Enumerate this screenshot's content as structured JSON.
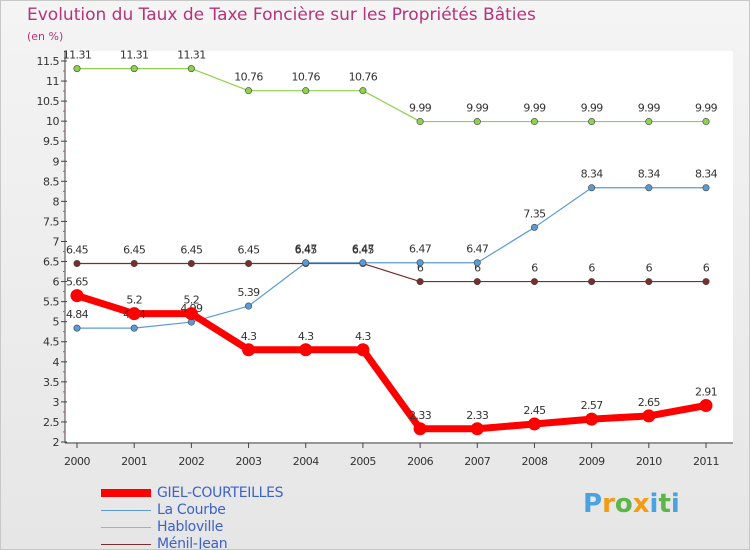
{
  "chart_data": {
    "type": "line",
    "title": "Evolution du Taux de Taxe Foncière sur les Propriétés Bâties",
    "ylabel": "(en %)",
    "xlabel": "",
    "ylim": [
      2,
      11.5
    ],
    "yticks": [
      "2",
      "2.5",
      "3",
      "3.5",
      "4",
      "4.5",
      "5",
      "5.5",
      "6",
      "6.5",
      "7",
      "7.5",
      "8",
      "8.5",
      "9",
      "9.5",
      "10",
      "10.5",
      "11",
      "11.5"
    ],
    "categories": [
      "2000",
      "2001",
      "2002",
      "2003",
      "2004",
      "2005",
      "2006",
      "2007",
      "2008",
      "2009",
      "2010",
      "2011"
    ],
    "series": [
      {
        "name": "Habloville",
        "color": "#8fd14f",
        "values": [
          11.31,
          11.31,
          11.31,
          10.76,
          10.76,
          10.76,
          9.99,
          9.99,
          9.99,
          9.99,
          9.99,
          9.99
        ],
        "labels": [
          "11.31",
          "11.31",
          "11.31",
          "10.76",
          "10.76",
          "10.76",
          "9.99",
          "9.99",
          "9.99",
          "9.99",
          "9.99",
          "9.99"
        ]
      },
      {
        "name": "Ménil-Jean",
        "color": "#7b2c2c",
        "values": [
          6.45,
          6.45,
          6.45,
          6.45,
          6.45,
          6.45,
          6,
          6,
          6,
          6,
          6,
          6
        ],
        "labels": [
          "6.45",
          "6.45",
          "6.45",
          "6.45",
          "6.45",
          "6.45",
          "6",
          "6",
          "6",
          "6",
          "6",
          "6"
        ]
      },
      {
        "name": "La Courbe",
        "color": "#5b9bd5",
        "values": [
          4.84,
          4.84,
          4.99,
          5.39,
          6.47,
          6.47,
          6.47,
          6.47,
          7.35,
          8.34,
          8.34,
          8.34
        ],
        "labels": [
          "4.84",
          "4.84",
          "4.99",
          "5.39",
          "6.47",
          "6.47",
          "6.47",
          "6.47",
          "7.35",
          "8.34",
          "8.34",
          "8.34"
        ]
      },
      {
        "name": "GIEL-COURTEILLES",
        "color": "#ff0000",
        "values": [
          5.65,
          5.2,
          5.2,
          4.3,
          4.3,
          4.3,
          2.33,
          2.33,
          2.45,
          2.57,
          2.65,
          2.91
        ],
        "labels": [
          "5.65",
          "5.2",
          "5.2",
          "4.3",
          "4.3",
          "4.3",
          "2.33",
          "2.33",
          "2.45",
          "2.57",
          "2.65",
          "2.91"
        ]
      }
    ],
    "legend": [
      "GIEL-COURTEILLES",
      "La Courbe",
      "Habloville",
      "Ménil-Jean"
    ],
    "legend_position": "bottom-left"
  },
  "legend_colors": {
    "GIEL-COURTEILLES": "#ff0000",
    "La Courbe": "#5b9bd5",
    "Habloville": "#8fd14f",
    "Ménil-Jean": "#7b2c2c"
  },
  "logo": {
    "letters": [
      "P",
      "r",
      "o",
      "x",
      "i",
      "t",
      "i"
    ],
    "colors": [
      "#4aa3df",
      "#f39c12",
      "#5fb648",
      "#f39c12",
      "#4aa3df",
      "#5fb648",
      "#4aa3df"
    ]
  }
}
